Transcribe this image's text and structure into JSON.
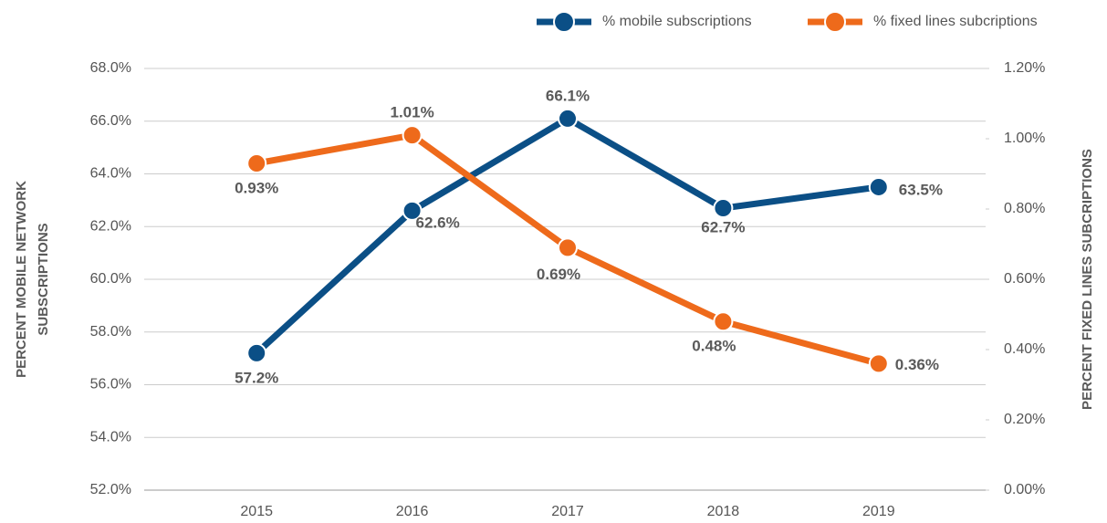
{
  "chart_data": {
    "type": "line",
    "categories": [
      "2015",
      "2016",
      "2017",
      "2018",
      "2019"
    ],
    "series": [
      {
        "name": "% mobile subscriptions",
        "color": "#0b4f86",
        "axis": "y",
        "values": [
          57.2,
          62.6,
          66.1,
          62.7,
          63.5
        ],
        "value_labels": [
          "57.2%",
          "62.6%",
          "66.1%",
          "62.7%",
          "63.5%"
        ]
      },
      {
        "name": "% fixed lines subcriptions",
        "color": "#ee6a1b",
        "axis": "y2",
        "values": [
          0.93,
          1.01,
          0.69,
          0.48,
          0.36
        ],
        "value_labels": [
          "0.93%",
          "1.01%",
          "0.69%",
          "0.48%",
          "0.36%"
        ]
      }
    ],
    "ylabel": [
      "PERCENT MOBILE NETWORK",
      "SUBSCRIPTIONS"
    ],
    "y2label": "PERCENT FIXED LINES SUBCRIPTIONS",
    "ylim": [
      52,
      68
    ],
    "yticks": [
      {
        "value": 52,
        "label": "52.0%"
      },
      {
        "value": 54,
        "label": "54.0%"
      },
      {
        "value": 56,
        "label": "56.0%"
      },
      {
        "value": 58,
        "label": "58.0%"
      },
      {
        "value": 60,
        "label": "60.0%"
      },
      {
        "value": 62,
        "label": "62.0%"
      },
      {
        "value": 64,
        "label": "64.0%"
      },
      {
        "value": 66,
        "label": "66.0%"
      },
      {
        "value": 68,
        "label": "68.0%"
      }
    ],
    "y2lim": [
      0,
      1.2
    ],
    "y2ticks": [
      {
        "value": 0,
        "label": "0.00%"
      },
      {
        "value": 0.2,
        "label": "0.20%"
      },
      {
        "value": 0.4,
        "label": "0.40%"
      },
      {
        "value": 0.6,
        "label": "0.60%"
      },
      {
        "value": 0.8,
        "label": "0.80%"
      },
      {
        "value": 1.0,
        "label": "1.00%"
      },
      {
        "value": 1.2,
        "label": "1.20%"
      }
    ],
    "grid": true,
    "legend": "top-right"
  }
}
